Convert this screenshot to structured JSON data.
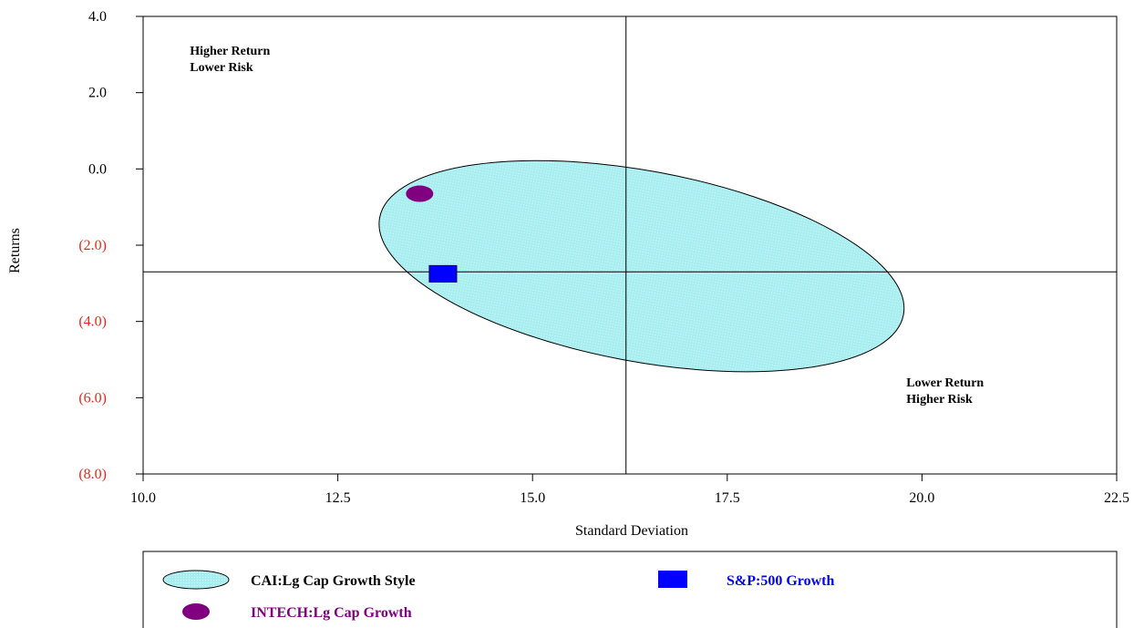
{
  "chart_data": {
    "type": "scatter",
    "xlabel": "Standard Deviation",
    "ylabel": "Returns",
    "xlim": [
      10.0,
      22.5
    ],
    "ylim": [
      -8.0,
      4.0
    ],
    "x_ticks": [
      {
        "value": 10.0,
        "label": "10.0"
      },
      {
        "value": 12.5,
        "label": "12.5"
      },
      {
        "value": 15.0,
        "label": "15.0"
      },
      {
        "value": 17.5,
        "label": "17.5"
      },
      {
        "value": 20.0,
        "label": "20.0"
      },
      {
        "value": 22.5,
        "label": "22.5"
      }
    ],
    "y_ticks": [
      {
        "value": 4.0,
        "label": "4.0",
        "color": "#000000"
      },
      {
        "value": 2.0,
        "label": "2.0",
        "color": "#000000"
      },
      {
        "value": 0.0,
        "label": "0.0",
        "color": "#000000"
      },
      {
        "value": -2.0,
        "label": "(2.0)",
        "color": "#e8291c"
      },
      {
        "value": -4.0,
        "label": "(4.0)",
        "color": "#e8291c"
      },
      {
        "value": -6.0,
        "label": "(6.0)",
        "color": "#e8291c"
      },
      {
        "value": -8.0,
        "label": "(8.0)",
        "color": "#e8291c"
      }
    ],
    "reference_lines": {
      "x": 16.2,
      "y": -2.7
    },
    "annotations": [
      {
        "lines": [
          "Higher Return",
          "Lower Risk"
        ],
        "x": 10.6,
        "y": 3.0
      },
      {
        "lines": [
          "Lower Return",
          "Higher Risk"
        ],
        "x": 19.8,
        "y": -5.7
      }
    ],
    "series": [
      {
        "name": "CAI:Lg Cap Growth Style",
        "kind": "ellipse",
        "center": [
          16.4,
          -2.55
        ],
        "rx": 3.42,
        "ry": 2.5,
        "angle_deg": 10.5,
        "fill": "#aaf0f0",
        "stroke": "#000000"
      },
      {
        "name": "INTECH:Lg Cap Growth",
        "kind": "point",
        "marker": "circle",
        "x": 13.55,
        "y": -0.65,
        "color": "#800080"
      },
      {
        "name": "S&P:500 Growth",
        "kind": "point",
        "marker": "square",
        "x": 13.85,
        "y": -2.75,
        "color": "#0000ff"
      }
    ],
    "legend": {
      "position": "bottom",
      "entries": [
        {
          "label": "CAI:Lg Cap Growth Style",
          "marker": "ellipse",
          "color": "#aaf0f0",
          "text_color": "#000000"
        },
        {
          "label": "S&P:500 Growth",
          "marker": "rect",
          "color": "#0000ff",
          "text_color": "#0000ff"
        },
        {
          "label": "INTECH:Lg Cap Growth",
          "marker": "circle",
          "color": "#800080",
          "text_color": "#800080"
        }
      ]
    },
    "grid": false
  }
}
